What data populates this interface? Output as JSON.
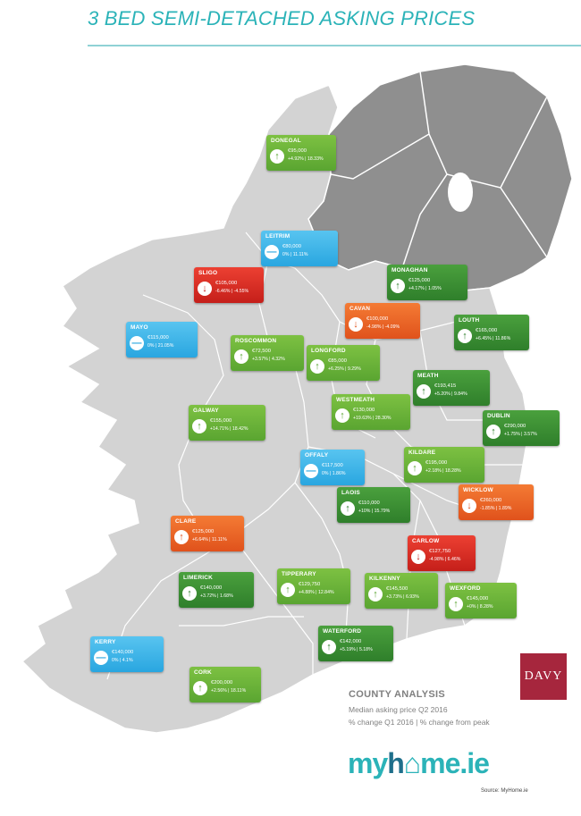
{
  "title": "3 BED SEMI-DETACHED ASKING PRICES",
  "counties": [
    {
      "name": "DONEGAL",
      "price": "€95,000",
      "change": "+4.92% | 18.33%",
      "trend": "up",
      "color": "green"
    },
    {
      "name": "LEITRIM",
      "price": "€80,000",
      "change": "0% | 11.11%",
      "trend": "flat",
      "color": "blue"
    },
    {
      "name": "SLIGO",
      "price": "€105,000",
      "change": "-6.46% | -4.55%",
      "trend": "down",
      "color": "red"
    },
    {
      "name": "MONAGHAN",
      "price": "€125,000",
      "change": "+4.17% | 1.05%",
      "trend": "up",
      "color": "dgreen"
    },
    {
      "name": "MAYO",
      "price": "€115,000",
      "change": "0% | 21.05%",
      "trend": "flat",
      "color": "blue"
    },
    {
      "name": "CAVAN",
      "price": "€100,000",
      "change": "-4.98% | -4.09%",
      "trend": "down",
      "color": "orange"
    },
    {
      "name": "LOUTH",
      "price": "€165,000",
      "change": "+6.45% | 11.86%",
      "trend": "up",
      "color": "dgreen"
    },
    {
      "name": "ROSCOMMON",
      "price": "€72,500",
      "change": "+3.57% | 4.32%",
      "trend": "up",
      "color": "green"
    },
    {
      "name": "LONGFORD",
      "price": "€85,000",
      "change": "+6.25% | 9.29%",
      "trend": "up",
      "color": "green"
    },
    {
      "name": "MEATH",
      "price": "€193,415",
      "change": "+5.20% | 9.84%",
      "trend": "up",
      "color": "dgreen"
    },
    {
      "name": "WESTMEATH",
      "price": "€130,000",
      "change": "+19.63% | 28.30%",
      "trend": "up",
      "color": "green"
    },
    {
      "name": "GALWAY",
      "price": "€155,000",
      "change": "+14.71% | 18.42%",
      "trend": "up",
      "color": "green"
    },
    {
      "name": "DUBLIN",
      "price": "€290,000",
      "change": "+1.75% | 3.57%",
      "trend": "up",
      "color": "dgreen"
    },
    {
      "name": "OFFALY",
      "price": "€117,500",
      "change": "0% | 1.86%",
      "trend": "flat",
      "color": "blue"
    },
    {
      "name": "KILDARE",
      "price": "€195,000",
      "change": "+2.18% | 18.28%",
      "trend": "up",
      "color": "green"
    },
    {
      "name": "LAOIS",
      "price": "€110,000",
      "change": "+10% | 15.79%",
      "trend": "up",
      "color": "dgreen"
    },
    {
      "name": "WICKLOW",
      "price": "€260,000",
      "change": "-1.85% | 1.89%",
      "trend": "down",
      "color": "orange"
    },
    {
      "name": "CLARE",
      "price": "€125,000",
      "change": "+6.64% | 11.11%",
      "trend": "up",
      "color": "orange"
    },
    {
      "name": "CARLOW",
      "price": "€127,750",
      "change": "-4.98% | 6.46%",
      "trend": "down",
      "color": "red"
    },
    {
      "name": "LIMERICK",
      "price": "€140,000",
      "change": "+3.72% | 1.68%",
      "trend": "up",
      "color": "dgreen"
    },
    {
      "name": "TIPPERARY",
      "price": "€129,750",
      "change": "+4.88% | 12.84%",
      "trend": "up",
      "color": "green"
    },
    {
      "name": "KILKENNY",
      "price": "€145,500",
      "change": "+3.73% | 6.93%",
      "trend": "up",
      "color": "green"
    },
    {
      "name": "WEXFORD",
      "price": "€145,000",
      "change": "+0% | 8.28%",
      "trend": "up",
      "color": "green"
    },
    {
      "name": "WATERFORD",
      "price": "€142,000",
      "change": "+5.19% | 5.18%",
      "trend": "up",
      "color": "dgreen"
    },
    {
      "name": "KERRY",
      "price": "€140,000",
      "change": "0% | 4.1%",
      "trend": "flat",
      "color": "blue"
    },
    {
      "name": "CORK",
      "price": "€200,000",
      "change": "+2.56% | 18.11%",
      "trend": "up",
      "color": "green"
    }
  ],
  "legend": {
    "title": "COUNTY ANALYSIS",
    "line1": "Median asking price Q2 2016",
    "line2": "% change Q1 2016  |  % change from peak"
  },
  "davy_logo": "DAVY",
  "logo": {
    "part1": "my",
    "part2": "h",
    "part3": "me.ie"
  },
  "source": "Source: MyHome.ie"
}
